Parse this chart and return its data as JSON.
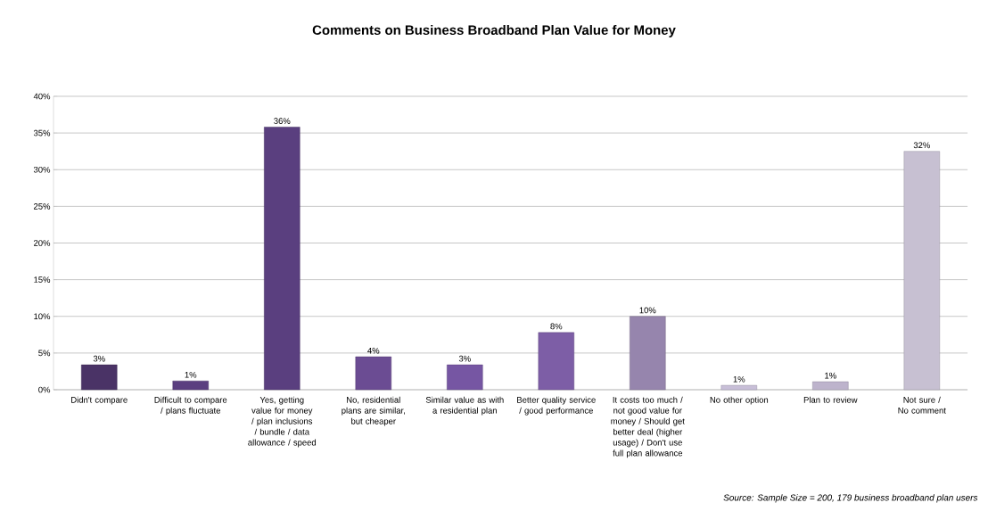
{
  "chart_data": {
    "type": "bar",
    "title": "Comments on Business Broadband Plan Value for Money",
    "categories": [
      "Didn't compare",
      "Difficult to compare / plans fluctuate",
      "Yes, getting value for money / plan inclusions / bundle / data allowance / speed",
      "No, residential plans are similar, but cheaper",
      "Similar value as with a residential plan",
      "Better quality service / good performance",
      "It costs too much / not good value for money / Should get better deal (higher usage) / Don't use full plan allowance",
      "No other option",
      "Plan to review",
      "Not sure / No comment"
    ],
    "values": [
      3.4,
      1.2,
      35.8,
      4.5,
      3.4,
      7.8,
      10.0,
      0.6,
      1.1,
      32.5
    ],
    "value_labels": [
      "3%",
      "1%",
      "36%",
      "4%",
      "3%",
      "8%",
      "10%",
      "1%",
      "1%",
      "32%"
    ],
    "colors": [
      "#4a3366",
      "#5b3f80",
      "#5a3f7f",
      "#6b4c93",
      "#7656a3",
      "#7d5ea6",
      "#9685ad",
      "#c8bfd8",
      "#bdb3cc",
      "#c7c0d2"
    ],
    "ylim": [
      0,
      40
    ],
    "yticks": [
      {
        "value": 0,
        "label": "0%"
      },
      {
        "value": 5,
        "label": "5%"
      },
      {
        "value": 10,
        "label": "10%"
      },
      {
        "value": 15,
        "label": "15%"
      },
      {
        "value": 20,
        "label": "20%"
      },
      {
        "value": 25,
        "label": "25%"
      },
      {
        "value": 30,
        "label": "30%"
      },
      {
        "value": 35,
        "label": "35%"
      },
      {
        "value": 40,
        "label": "40%"
      }
    ],
    "grid": "y",
    "annotations": [
      "Source: Sample Size = 200, 179 business broadband plan users"
    ]
  }
}
